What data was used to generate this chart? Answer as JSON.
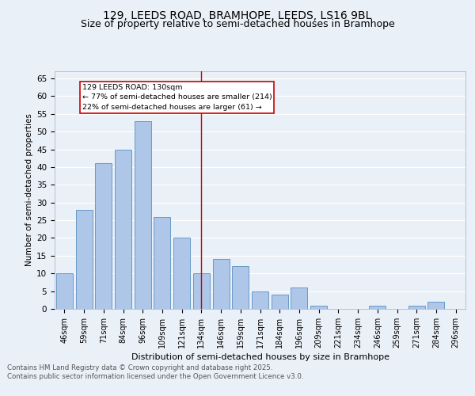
{
  "title1": "129, LEEDS ROAD, BRAMHOPE, LEEDS, LS16 9BL",
  "title2": "Size of property relative to semi-detached houses in Bramhope",
  "xlabel": "Distribution of semi-detached houses by size in Bramhope",
  "ylabel": "Number of semi-detached properties",
  "categories": [
    "46sqm",
    "59sqm",
    "71sqm",
    "84sqm",
    "96sqm",
    "109sqm",
    "121sqm",
    "134sqm",
    "146sqm",
    "159sqm",
    "171sqm",
    "184sqm",
    "196sqm",
    "209sqm",
    "221sqm",
    "234sqm",
    "246sqm",
    "259sqm",
    "271sqm",
    "284sqm",
    "296sqm"
  ],
  "values": [
    10,
    28,
    41,
    45,
    53,
    26,
    20,
    10,
    14,
    12,
    5,
    4,
    6,
    1,
    0,
    0,
    1,
    0,
    1,
    2,
    0
  ],
  "bar_color": "#aec6e8",
  "bar_edge_color": "#5a8fc2",
  "vline_x": 7.0,
  "vline_label": "129 LEEDS ROAD: 130sqm",
  "annotation_line1": "← 77% of semi-detached houses are smaller (214)",
  "annotation_line2": "22% of semi-detached houses are larger (61) →",
  "ylim": [
    0,
    67
  ],
  "yticks": [
    0,
    5,
    10,
    15,
    20,
    25,
    30,
    35,
    40,
    45,
    50,
    55,
    60,
    65
  ],
  "bg_color": "#eaf0f8",
  "plot_bg_color": "#eaf0f8",
  "footer1": "Contains HM Land Registry data © Crown copyright and database right 2025.",
  "footer2": "Contains public sector information licensed under the Open Government Licence v3.0.",
  "title_fontsize": 10,
  "subtitle_fontsize": 9,
  "annotation_box_color": "#ffffff",
  "annotation_box_edge": "#cc0000",
  "vline_color": "#cc0000"
}
